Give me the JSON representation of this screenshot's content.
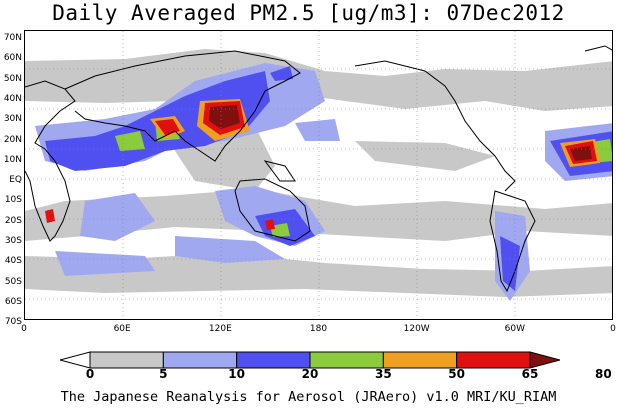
{
  "title": "Daily Averaged PM2.5 [ug/m3]: 07Dec2012",
  "footer": "The Japanese Reanalysis for Aerosol (JRAero) v1.0 MRI/KU_RIAM",
  "map": {
    "variable": "PM2.5",
    "date": "07Dec2012",
    "lat_labels": [
      "70N",
      "60N",
      "50N",
      "40N",
      "30N",
      "20N",
      "10N",
      "EQ",
      "10S",
      "20S",
      "30S",
      "40S",
      "50S",
      "60S",
      "70S"
    ],
    "lon_labels": [
      "0",
      "60E",
      "120E",
      "180",
      "120W",
      "60W",
      "0"
    ],
    "grid": true
  },
  "colorbar": {
    "levels": [
      "0",
      "5",
      "10",
      "20",
      "35",
      "50",
      "65",
      "80"
    ],
    "colors": [
      "#ffffff",
      "#c8c8c8",
      "#a0a8f0",
      "#5050f0",
      "#8ccc3c",
      "#f0a020",
      "#e01010",
      "#801010"
    ]
  }
}
